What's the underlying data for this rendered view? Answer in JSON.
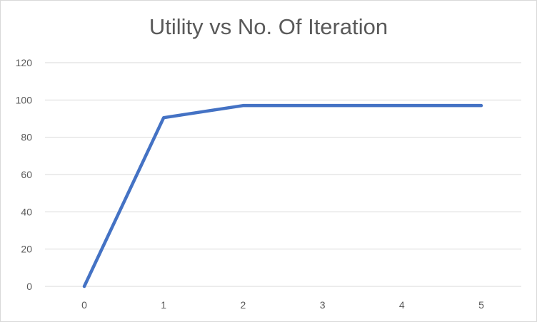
{
  "chart_data": {
    "type": "line",
    "title": "Utility vs No. Of Iteration",
    "xlabel": "",
    "ylabel": "",
    "x": [
      0,
      1,
      2,
      3,
      4,
      5
    ],
    "xticks": [
      "0",
      "1",
      "2",
      "3",
      "4",
      "5"
    ],
    "yticks": [
      "0",
      "20",
      "40",
      "60",
      "80",
      "100",
      "120"
    ],
    "ylim": [
      0,
      120
    ],
    "grid": true,
    "legend": "none",
    "series": [
      {
        "values": [
          0,
          90.5,
          97,
          97,
          97,
          97
        ],
        "color": "#4472c4"
      }
    ],
    "colors": {
      "gridline": "#d9d9d9",
      "text": "#595959",
      "series": "#4472c4"
    }
  }
}
